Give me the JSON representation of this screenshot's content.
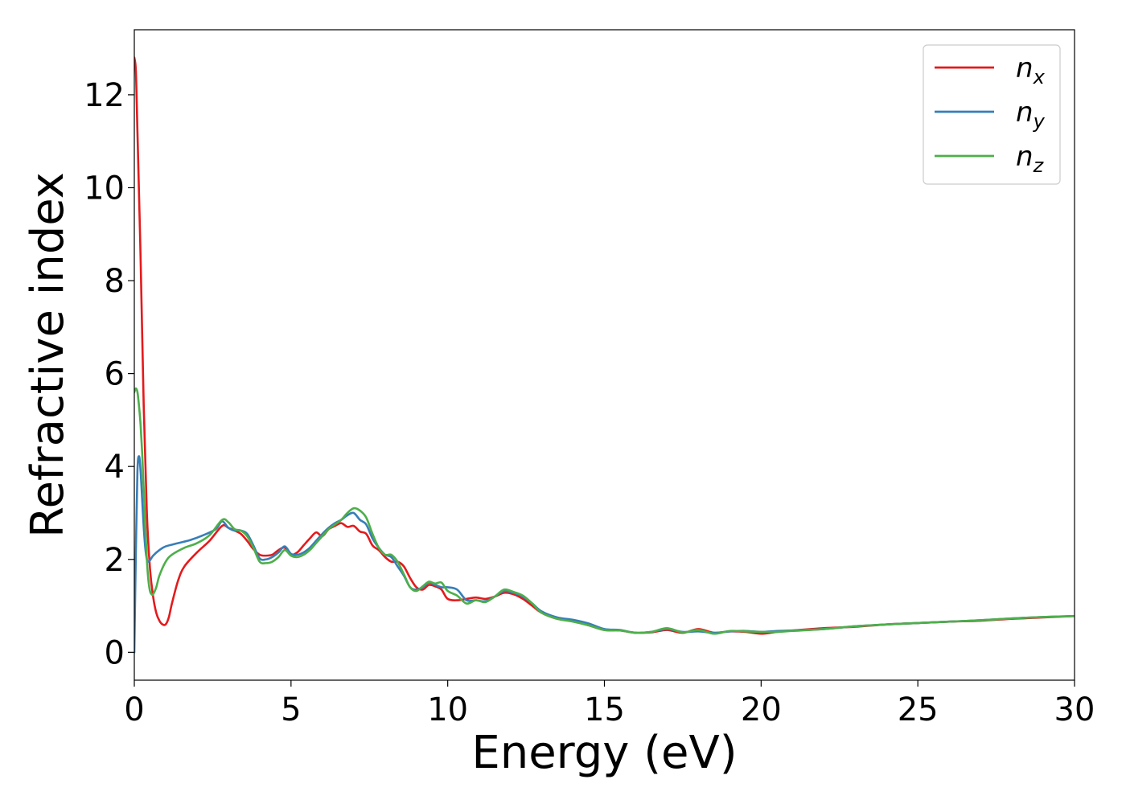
{
  "chart_data": {
    "type": "line",
    "xlabel": "Energy (eV)",
    "ylabel": "Refractive index",
    "xlim": [
      0,
      30
    ],
    "ylim": [
      -0.6,
      13.4
    ],
    "xticks": [
      0,
      5,
      10,
      15,
      20,
      25,
      30
    ],
    "yticks": [
      0,
      2,
      4,
      6,
      8,
      10,
      12
    ],
    "grid": false,
    "legend_position": "top-right",
    "series": [
      {
        "name": "x",
        "color": "#e41a1c",
        "x": [
          0,
          0.05,
          0.1,
          0.2,
          0.3,
          0.4,
          0.5,
          0.6,
          0.7,
          0.8,
          0.9,
          1.0,
          1.1,
          1.2,
          1.4,
          1.6,
          2.0,
          2.4,
          2.8,
          3.0,
          3.2,
          3.4,
          3.6,
          3.8,
          4.0,
          4.2,
          4.4,
          4.6,
          4.8,
          5.0,
          5.2,
          5.4,
          5.6,
          5.8,
          6.0,
          6.2,
          6.4,
          6.6,
          6.8,
          7.0,
          7.2,
          7.4,
          7.6,
          7.8,
          8.0,
          8.2,
          8.4,
          8.6,
          8.8,
          9.0,
          9.2,
          9.4,
          9.6,
          9.8,
          10.0,
          10.3,
          10.6,
          10.9,
          11.2,
          11.5,
          11.8,
          12.1,
          12.4,
          12.7,
          13.0,
          13.5,
          14.0,
          14.5,
          15.0,
          15.5,
          16.0,
          16.5,
          17.0,
          17.5,
          18.0,
          18.5,
          19.0,
          19.5,
          20.0,
          20.5,
          21.0,
          22.0,
          23.0,
          24.0,
          25.0,
          26.0,
          27.0,
          28.0,
          29.0,
          30.0
        ],
        "y": [
          12.8,
          12.5,
          11.2,
          8.5,
          5.3,
          3.0,
          1.8,
          1.2,
          0.85,
          0.68,
          0.6,
          0.6,
          0.75,
          1.05,
          1.55,
          1.85,
          2.15,
          2.4,
          2.72,
          2.68,
          2.62,
          2.55,
          2.4,
          2.22,
          2.1,
          2.08,
          2.1,
          2.2,
          2.25,
          2.1,
          2.15,
          2.3,
          2.45,
          2.58,
          2.5,
          2.65,
          2.72,
          2.78,
          2.7,
          2.72,
          2.6,
          2.55,
          2.3,
          2.2,
          2.05,
          1.95,
          1.95,
          1.85,
          1.6,
          1.4,
          1.35,
          1.45,
          1.42,
          1.35,
          1.15,
          1.12,
          1.15,
          1.18,
          1.15,
          1.2,
          1.28,
          1.25,
          1.15,
          1.0,
          0.85,
          0.72,
          0.68,
          0.58,
          0.48,
          0.47,
          0.42,
          0.43,
          0.48,
          0.42,
          0.5,
          0.42,
          0.45,
          0.44,
          0.4,
          0.44,
          0.47,
          0.52,
          0.55,
          0.6,
          0.63,
          0.66,
          0.68,
          0.72,
          0.75,
          0.78
        ]
      },
      {
        "name": "y",
        "color": "#377eb8",
        "x": [
          0,
          0.05,
          0.1,
          0.15,
          0.2,
          0.25,
          0.3,
          0.35,
          0.4,
          0.45,
          0.5,
          0.6,
          0.8,
          1.0,
          1.4,
          1.8,
          2.2,
          2.6,
          2.8,
          3.0,
          3.2,
          3.4,
          3.6,
          3.8,
          4.0,
          4.2,
          4.4,
          4.6,
          4.8,
          5.0,
          5.2,
          5.4,
          5.6,
          5.8,
          6.0,
          6.2,
          6.4,
          6.6,
          6.8,
          7.0,
          7.2,
          7.4,
          7.6,
          7.8,
          8.0,
          8.2,
          8.4,
          8.6,
          8.8,
          9.0,
          9.2,
          9.4,
          9.6,
          9.8,
          10.0,
          10.3,
          10.6,
          10.9,
          11.2,
          11.5,
          11.8,
          12.1,
          12.4,
          12.7,
          13.0,
          13.5,
          14.0,
          14.5,
          15.0,
          15.5,
          16.0,
          16.5,
          17.0,
          17.5,
          18.0,
          18.5,
          19.0,
          19.5,
          20.0,
          20.5,
          21.0,
          22.0,
          23.0,
          24.0,
          25.0,
          26.0,
          27.0,
          28.0,
          29.0,
          30.0
        ],
        "y": [
          0.0,
          2.2,
          3.9,
          4.22,
          3.9,
          3.3,
          2.7,
          2.25,
          2.0,
          1.95,
          1.98,
          2.08,
          2.2,
          2.28,
          2.35,
          2.42,
          2.52,
          2.65,
          2.82,
          2.68,
          2.62,
          2.62,
          2.55,
          2.3,
          2.02,
          2.0,
          2.05,
          2.15,
          2.28,
          2.12,
          2.1,
          2.15,
          2.25,
          2.4,
          2.55,
          2.68,
          2.78,
          2.85,
          2.95,
          3.0,
          2.85,
          2.75,
          2.45,
          2.25,
          2.1,
          2.05,
          1.85,
          1.65,
          1.4,
          1.35,
          1.4,
          1.5,
          1.45,
          1.4,
          1.4,
          1.35,
          1.12,
          1.12,
          1.1,
          1.2,
          1.32,
          1.28,
          1.2,
          1.05,
          0.88,
          0.75,
          0.7,
          0.62,
          0.5,
          0.48,
          0.42,
          0.44,
          0.5,
          0.44,
          0.45,
          0.42,
          0.45,
          0.46,
          0.44,
          0.46,
          0.47,
          0.5,
          0.56,
          0.6,
          0.63,
          0.66,
          0.69,
          0.73,
          0.76,
          0.78
        ]
      },
      {
        "name": "z",
        "color": "#4daf4a",
        "x": [
          0,
          0.05,
          0.1,
          0.15,
          0.2,
          0.25,
          0.3,
          0.35,
          0.4,
          0.45,
          0.5,
          0.55,
          0.6,
          0.7,
          0.8,
          1.0,
          1.2,
          1.6,
          2.0,
          2.4,
          2.8,
          3.0,
          3.2,
          3.4,
          3.6,
          3.8,
          4.0,
          4.2,
          4.4,
          4.6,
          4.8,
          5.0,
          5.2,
          5.4,
          5.6,
          5.8,
          6.0,
          6.2,
          6.4,
          6.6,
          6.8,
          7.0,
          7.2,
          7.4,
          7.6,
          7.8,
          8.0,
          8.2,
          8.4,
          8.6,
          8.8,
          9.0,
          9.2,
          9.4,
          9.6,
          9.8,
          10.0,
          10.3,
          10.6,
          10.9,
          11.2,
          11.5,
          11.8,
          12.1,
          12.4,
          12.7,
          13.0,
          13.5,
          14.0,
          14.5,
          15.0,
          15.5,
          16.0,
          16.5,
          17.0,
          17.5,
          18.0,
          18.5,
          19.0,
          19.5,
          20.0,
          20.5,
          21.0,
          22.0,
          23.0,
          24.0,
          25.0,
          26.0,
          27.0,
          28.0,
          29.0,
          30.0
        ],
        "y": [
          5.6,
          5.68,
          5.6,
          5.3,
          4.9,
          4.3,
          3.5,
          2.7,
          2.0,
          1.55,
          1.32,
          1.25,
          1.25,
          1.4,
          1.65,
          1.95,
          2.1,
          2.25,
          2.35,
          2.52,
          2.85,
          2.8,
          2.65,
          2.62,
          2.5,
          2.25,
          1.95,
          1.92,
          1.95,
          2.05,
          2.2,
          2.08,
          2.05,
          2.1,
          2.2,
          2.35,
          2.5,
          2.65,
          2.75,
          2.85,
          3.0,
          3.1,
          3.05,
          2.9,
          2.55,
          2.25,
          2.1,
          2.1,
          1.95,
          1.68,
          1.4,
          1.32,
          1.42,
          1.52,
          1.48,
          1.5,
          1.32,
          1.22,
          1.05,
          1.12,
          1.08,
          1.2,
          1.35,
          1.3,
          1.22,
          1.05,
          0.85,
          0.72,
          0.66,
          0.58,
          0.48,
          0.47,
          0.42,
          0.44,
          0.52,
          0.43,
          0.48,
          0.4,
          0.46,
          0.45,
          0.44,
          0.44,
          0.46,
          0.5,
          0.56,
          0.6,
          0.63,
          0.66,
          0.69,
          0.73,
          0.76,
          0.78
        ]
      }
    ]
  }
}
